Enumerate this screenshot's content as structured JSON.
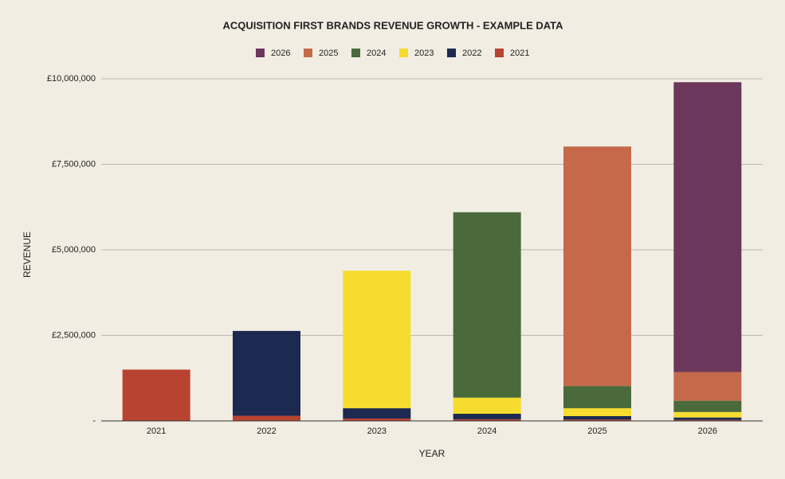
{
  "chart_data": {
    "type": "stacked_bar",
    "title": "ACQUISITION FIRST BRANDS REVENUE GROWTH - EXAMPLE DATA",
    "x_label": "YEAR",
    "y_label": "REVENUE",
    "categories": [
      "2021",
      "2022",
      "2023",
      "2024",
      "2025",
      "2026"
    ],
    "series": [
      {
        "name": "2026",
        "color": "#6b375b",
        "values": [
          null,
          null,
          null,
          null,
          null,
          8470000
        ]
      },
      {
        "name": "2025",
        "color": "#c46a4a",
        "values": [
          null,
          null,
          null,
          null,
          7000000,
          840000
        ]
      },
      {
        "name": "2024",
        "color": "#4a6a3c",
        "values": [
          null,
          null,
          null,
          5420000,
          650000,
          330000
        ]
      },
      {
        "name": "2023",
        "color": "#f5dc2e",
        "values": [
          null,
          null,
          4020000,
          470000,
          230000,
          160000
        ]
      },
      {
        "name": "2022",
        "color": "#1c2950",
        "values": [
          null,
          2480000,
          300000,
          160000,
          100000,
          70000
        ]
      },
      {
        "name": "2021",
        "color": "#b84330",
        "values": [
          1500000,
          150000,
          70000,
          50000,
          40000,
          30000
        ]
      }
    ],
    "ylim": [
      0,
      10000000
    ],
    "yticks": [
      {
        "value": 0,
        "label": "-"
      },
      {
        "value": 2500000,
        "label": "£2,500,000"
      },
      {
        "value": 5000000,
        "label": "£5,000,000"
      },
      {
        "value": 7500000,
        "label": "£7,500,000"
      },
      {
        "value": 10000000,
        "label": "£10,000,000"
      }
    ],
    "grid": true,
    "legend": "top"
  }
}
